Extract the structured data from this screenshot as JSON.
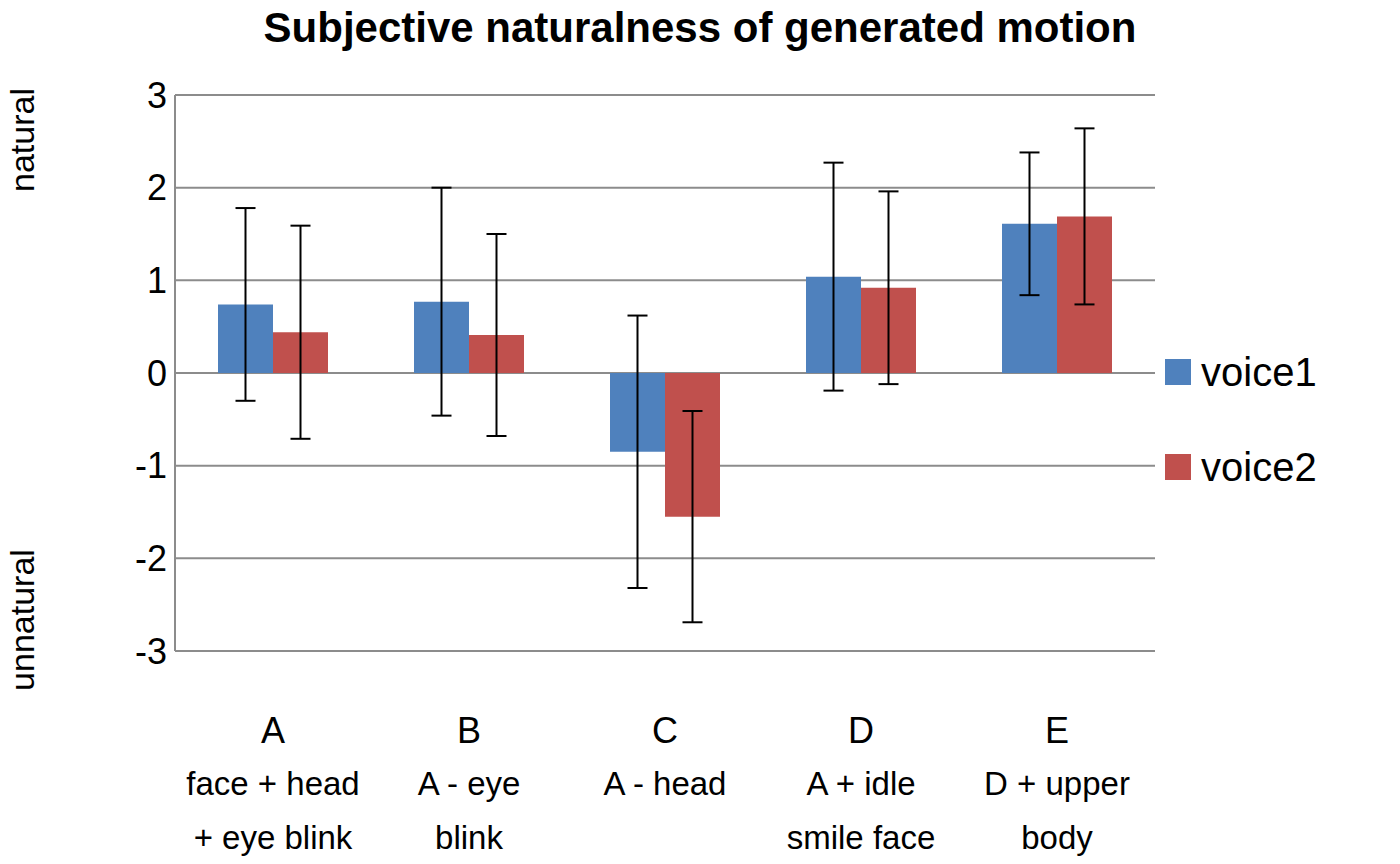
{
  "chart_data": {
    "type": "bar",
    "title": "Subjective naturalness of generated motion",
    "ylabel_top": "natural",
    "ylabel_bottom": "unnatural",
    "categories": [
      "A",
      "B",
      "C",
      "D",
      "E"
    ],
    "category_labels": [
      [
        "face + head",
        "+ eye blink"
      ],
      [
        "A - eye",
        "blink"
      ],
      [
        "A - head"
      ],
      [
        "A + idle",
        "smile face"
      ],
      [
        "D + upper",
        "body"
      ]
    ],
    "series": [
      {
        "name": "voice1",
        "color": "#4f81bd",
        "values": [
          0.74,
          0.77,
          -0.85,
          1.04,
          1.61
        ],
        "errors": [
          1.04,
          1.23,
          1.47,
          1.23,
          0.77
        ]
      },
      {
        "name": "voice2",
        "color": "#c0504d",
        "values": [
          0.44,
          0.41,
          -1.55,
          0.92,
          1.69
        ],
        "errors": [
          1.15,
          1.09,
          1.14,
          1.04,
          0.95
        ]
      }
    ],
    "ylim": [
      -3,
      3
    ],
    "yticks": [
      -3,
      -2,
      -1,
      0,
      1,
      2,
      3
    ],
    "grid": true,
    "legend": "right"
  }
}
